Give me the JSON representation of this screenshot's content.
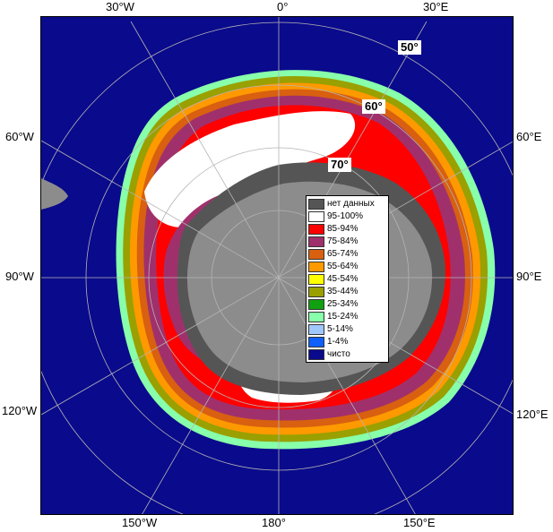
{
  "map": {
    "ocean_color": "#0a0a8c",
    "land_color": "#8c8c8c",
    "nodata_color": "#5a5a5a",
    "grid_color": "#b4b4b4",
    "longitude_labels": {
      "top_left": "30°W",
      "top_center": "0°",
      "top_right": "30°E",
      "left_upper": "60°W",
      "right_upper": "60°E",
      "left_middle": "90°W",
      "right_middle": "90°E",
      "left_lower": "120°W",
      "right_lower": "120°E",
      "bottom_left": "150°W",
      "bottom_center": "180°",
      "bottom_right": "150°E"
    },
    "latitude_labels": {
      "lat_50": "50°",
      "lat_60": "60°",
      "lat_70": "70°"
    }
  },
  "legend": {
    "items": [
      {
        "label": "нет данных",
        "color": "#555555"
      },
      {
        "label": "95-100%",
        "color": "#ffffff"
      },
      {
        "label": "85-94%",
        "color": "#ff0000"
      },
      {
        "label": "75-84%",
        "color": "#a0306c"
      },
      {
        "label": "65-74%",
        "color": "#d86010"
      },
      {
        "label": "55-64%",
        "color": "#ff9900"
      },
      {
        "label": "45-54%",
        "color": "#ffff00"
      },
      {
        "label": "35-44%",
        "color": "#99a000"
      },
      {
        "label": "25-34%",
        "color": "#10a010"
      },
      {
        "label": "15-24%",
        "color": "#88ffaa"
      },
      {
        "label": "5-14%",
        "color": "#a0c8ff"
      },
      {
        "label": "1-4%",
        "color": "#1060ff"
      },
      {
        "label": "чисто",
        "color": "#0a0a8c"
      }
    ]
  }
}
